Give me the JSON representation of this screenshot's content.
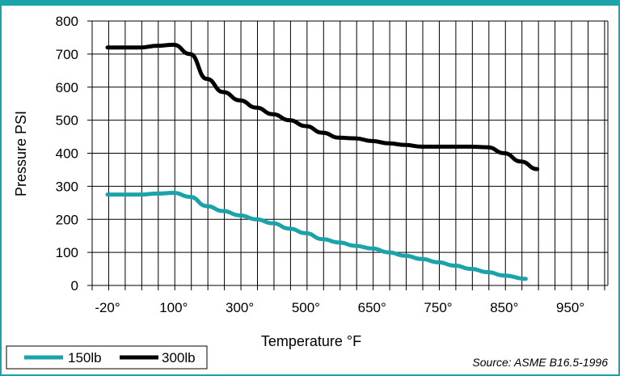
{
  "chart_data": {
    "type": "line",
    "xlabel": "Temperature °F",
    "ylabel": "Pressure PSI",
    "ylim": [
      0,
      800
    ],
    "y_ticks": [
      0,
      100,
      200,
      300,
      400,
      500,
      600,
      700,
      800
    ],
    "x_categories": [
      "-20°",
      "",
      "",
      "",
      "100°",
      "",
      "",
      "",
      "300°",
      "",
      "",
      "",
      "500°",
      "",
      "",
      "",
      "650°",
      "",
      "",
      "",
      "750°",
      "",
      "",
      "",
      "850°",
      "",
      "",
      "",
      "950°",
      "",
      ""
    ],
    "x_tick_labels": [
      "-20°",
      "100°",
      "300°",
      "500°",
      "650°",
      "750°",
      "850°",
      "950°"
    ],
    "grid": true,
    "series": [
      {
        "name": "150lb",
        "color": "#1aa3a8",
        "values": [
          275,
          275,
          275,
          278,
          280,
          268,
          240,
          225,
          212,
          200,
          188,
          172,
          158,
          140,
          130,
          120,
          112,
          100,
          90,
          80,
          70,
          60,
          50,
          40,
          30,
          20
        ]
      },
      {
        "name": "300lb",
        "color": "#000000",
        "values": [
          720,
          720,
          720,
          725,
          728,
          700,
          625,
          585,
          560,
          538,
          518,
          500,
          482,
          462,
          447,
          445,
          437,
          430,
          425,
          420,
          420,
          420,
          420,
          418,
          400,
          375,
          352
        ]
      }
    ],
    "source": "Source:  ASME B16.5-1996",
    "legend_position": "bottom-left"
  }
}
